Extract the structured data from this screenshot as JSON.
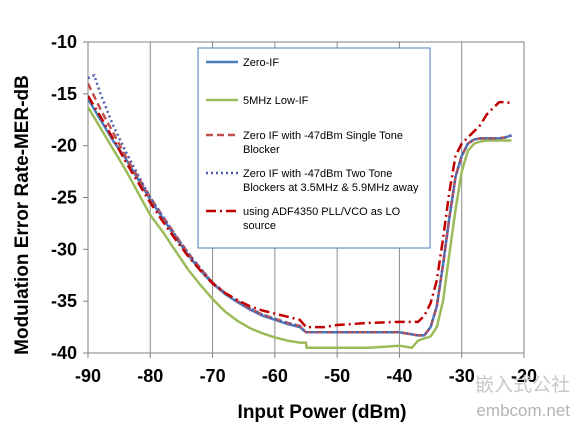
{
  "chart_data": {
    "type": "line",
    "xlabel": "Input Power (dBm)",
    "ylabel": "Modulation Error Rate-MER-dB",
    "xlim": [
      -90,
      -20
    ],
    "ylim": [
      -40,
      -10
    ],
    "x_ticks": [
      -90,
      -80,
      -70,
      -60,
      -50,
      -40,
      -30,
      -20
    ],
    "y_ticks": [
      -10,
      -15,
      -20,
      -25,
      -30,
      -35,
      -40
    ],
    "x_tick_labels": [
      "-90",
      "-80",
      "-70",
      "-60",
      "-50",
      "-40",
      "-30",
      "-20"
    ],
    "y_tick_labels": [
      "-10",
      "-15",
      "-20",
      "-25",
      "-30",
      "-35",
      "-40"
    ],
    "grid": "vertical",
    "legend_position": "top-center",
    "series": [
      {
        "name": "Zero-IF",
        "color": "#4a7ebb",
        "style": "solid",
        "x": [
          -90,
          -88,
          -86,
          -84,
          -82,
          -80,
          -78,
          -76,
          -74,
          -72,
          -70,
          -68,
          -66,
          -64,
          -62,
          -60,
          -58,
          -56,
          -55,
          -50,
          -45,
          -40,
          -37,
          -36,
          -35,
          -34,
          -33,
          -32,
          -31,
          -30,
          -29,
          -28,
          -27,
          -26,
          -25,
          -24,
          -23,
          -22
        ],
        "y": [
          -15.5,
          -17.5,
          -19.5,
          -21.2,
          -23.2,
          -25.2,
          -27,
          -28.8,
          -30.5,
          -32,
          -33.3,
          -34.3,
          -35.1,
          -35.8,
          -36.4,
          -36.8,
          -37.2,
          -37.5,
          -38,
          -38,
          -38,
          -38,
          -38.3,
          -38.3,
          -37.5,
          -35.5,
          -31.5,
          -27,
          -23,
          -21,
          -19.8,
          -19.4,
          -19.3,
          -19.3,
          -19.3,
          -19.3,
          -19.2,
          -19
        ]
      },
      {
        "name": "5MHz Low-IF",
        "color": "#9bbb59",
        "style": "solid",
        "x": [
          -90,
          -88,
          -86,
          -84,
          -82,
          -80,
          -78,
          -76,
          -74,
          -72,
          -70,
          -68,
          -66,
          -64,
          -62,
          -60,
          -58,
          -56,
          -55,
          -54.9,
          -50,
          -45,
          -40,
          -38,
          -37,
          -36,
          -35,
          -34,
          -33,
          -32,
          -31,
          -30,
          -29,
          -28,
          -27,
          -26,
          -25,
          -24,
          -23,
          -22
        ],
        "y": [
          -16.3,
          -18.3,
          -20.3,
          -22.3,
          -24.5,
          -26.7,
          -28.3,
          -30.1,
          -31.9,
          -33.4,
          -34.8,
          -36,
          -36.9,
          -37.6,
          -38.1,
          -38.5,
          -38.8,
          -39,
          -39,
          -39.5,
          -39.5,
          -39.5,
          -39.3,
          -39.5,
          -38.8,
          -38.6,
          -38.4,
          -37.5,
          -35,
          -30.5,
          -26.2,
          -22.5,
          -20.5,
          -19.8,
          -19.6,
          -19.5,
          -19.5,
          -19.5,
          -19.5,
          -19.5
        ]
      },
      {
        "name": "Zero IF with -47dBm Single Tone Blocker",
        "color": "#c0504d",
        "style": "dashed",
        "x": [
          -90,
          -88,
          -86,
          -84,
          -82,
          -80,
          -78,
          -76,
          -74,
          -72,
          -70,
          -68,
          -66,
          -64,
          -62,
          -60,
          -58,
          -56,
          -55,
          -50,
          -45,
          -40,
          -37,
          -36,
          -35,
          -34,
          -33,
          -32,
          -31,
          -30,
          -29,
          -28,
          -27,
          -26,
          -25,
          -24,
          -23,
          -22
        ],
        "y": [
          -14,
          -16.5,
          -18.7,
          -21,
          -23,
          -25,
          -26.8,
          -28.6,
          -30.3,
          -31.8,
          -33.2,
          -34.2,
          -35,
          -35.7,
          -36.3,
          -36.7,
          -37.1,
          -37.4,
          -38,
          -38,
          -38,
          -38,
          -38.3,
          -38.3,
          -37.5,
          -35.5,
          -31.5,
          -27,
          -23,
          -21,
          -19.8,
          -19.4,
          -19.3,
          -19.3,
          -19.3,
          -19.3,
          -19.2,
          -19
        ]
      },
      {
        "name": "Zero IF with -47dBm Two Tone Blockers at 3.5MHz & 5.9MHz away",
        "color": "#4f5fae",
        "style": "dotted",
        "x": [
          -90,
          -89,
          -88,
          -86,
          -84,
          -82,
          -80,
          -78,
          -76,
          -74,
          -72,
          -70,
          -68,
          -66,
          -64,
          -62,
          -60,
          -58,
          -56,
          -55,
          -50,
          -45,
          -40,
          -37,
          -36,
          -35,
          -34,
          -33,
          -32,
          -31,
          -30,
          -29,
          -28,
          -27,
          -26,
          -25,
          -24,
          -23,
          -22
        ],
        "y": [
          -13.5,
          -13.2,
          -15,
          -18,
          -20.5,
          -22.8,
          -25,
          -26.8,
          -28.6,
          -30.3,
          -31.8,
          -33.2,
          -34.2,
          -35,
          -35.7,
          -36.3,
          -36.7,
          -37.1,
          -37.4,
          -38,
          -38,
          -38,
          -38,
          -38.3,
          -38.3,
          -37.5,
          -35.5,
          -31.5,
          -27,
          -23,
          -21,
          -19.8,
          -19.4,
          -19.3,
          -19.3,
          -19.3,
          -19.3,
          -19.2,
          -19
        ]
      },
      {
        "name": "using ADF4350 PLL/VCO as LO source",
        "color": "#c00000",
        "style": "dashdot",
        "x": [
          -90,
          -88,
          -86,
          -84,
          -82,
          -80,
          -78,
          -76,
          -74,
          -72,
          -70,
          -68,
          -66,
          -64,
          -62,
          -60,
          -58,
          -56,
          -55,
          -52,
          -50,
          -45,
          -40,
          -37,
          -36,
          -35,
          -34,
          -33,
          -32,
          -31,
          -30,
          -29,
          -28,
          -27,
          -26,
          -25,
          -24,
          -23,
          -22
        ],
        "y": [
          -15.2,
          -17.2,
          -19.3,
          -21.5,
          -23.5,
          -25.5,
          -27.3,
          -29,
          -30.6,
          -32,
          -33.3,
          -34.2,
          -34.9,
          -35.5,
          -35.9,
          -36.2,
          -36.5,
          -36.8,
          -37.5,
          -37.5,
          -37.3,
          -37.1,
          -37,
          -37,
          -36.4,
          -35.2,
          -33,
          -29,
          -24.5,
          -21,
          -19.8,
          -19.2,
          -18.6,
          -18,
          -17,
          -16.4,
          -15.8,
          -15.8,
          -15.9
        ]
      }
    ]
  },
  "watermark": {
    "line1": "嵌入式公社",
    "line2": "embcom.net"
  }
}
